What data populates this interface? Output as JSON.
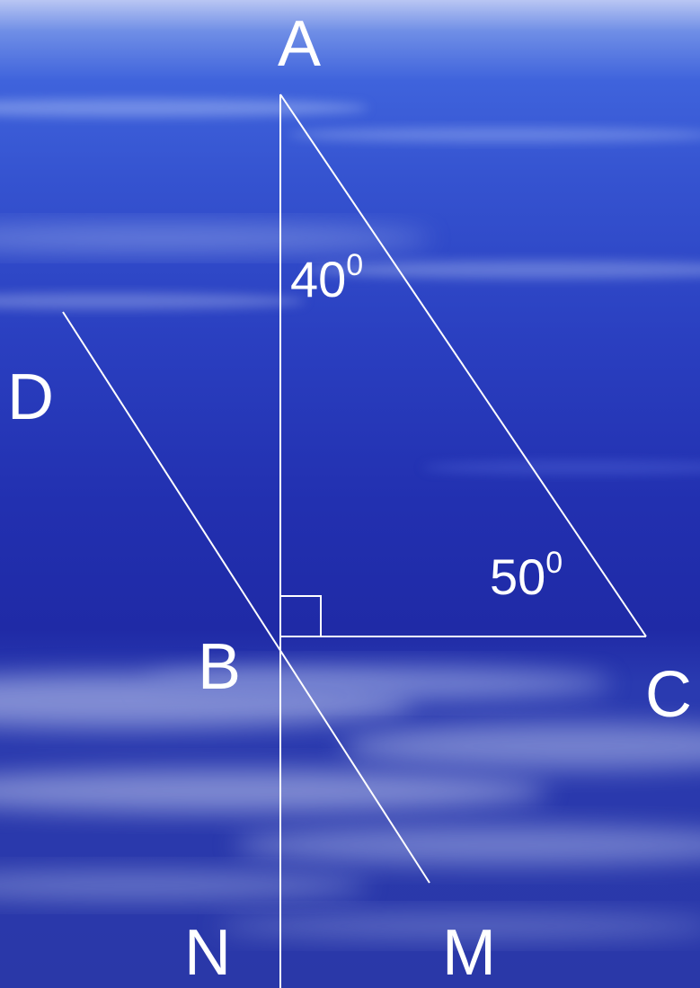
{
  "points": {
    "A": "A",
    "B": "B",
    "C": "C",
    "D": "D",
    "N": "N",
    "M": "M"
  },
  "angles": {
    "at_A": {
      "value": "40",
      "sup": "0"
    },
    "at_C": {
      "value": "50",
      "sup": "0"
    }
  },
  "colors": {
    "line": "#ffffff",
    "label": "#ffffff"
  }
}
